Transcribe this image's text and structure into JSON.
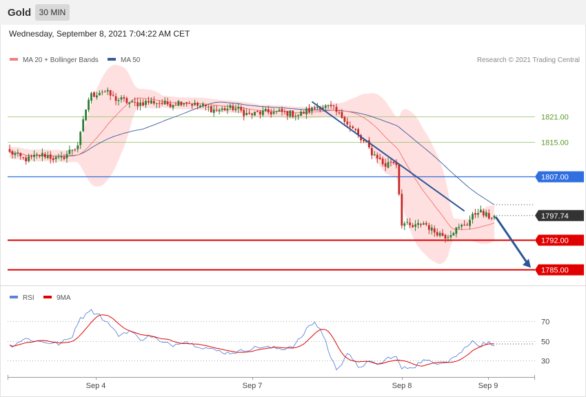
{
  "header": {
    "symbol": "Gold",
    "timeframe": "30 MIN",
    "datetime": "Wednesday, September 8, 2021 7:04:22 AM CET"
  },
  "legend": {
    "ma20": "MA 20 + Bollinger Bands",
    "ma50": "MA 50",
    "copyright": "Research © 2021 Trading Central"
  },
  "rsi_legend": {
    "rsi": "RSI",
    "ma9": "9MA"
  },
  "colors": {
    "bullish": "#2e7d32",
    "bearish": "#c62828",
    "bands": "#ffd6d6",
    "ma20": "#f07070",
    "ma50": "#3a5a9a",
    "rsi": "#5b84d6",
    "rsi_ma": "#e00000",
    "support": "#e00000",
    "pivot": "#2f6fe0",
    "resistance": "#8cc063",
    "trend_arrow": "#2c5694"
  },
  "chart_data": [
    {
      "type": "candlestick",
      "title": "Gold",
      "x_ticks": [
        "Sep 4",
        "Sep 7",
        "Sep 8",
        "Sep 9"
      ],
      "ylim": [
        1782,
        1833
      ],
      "levels": [
        {
          "value": 1821.0,
          "label": "1821.00",
          "kind": "resistance"
        },
        {
          "value": 1815.0,
          "label": "1815.00",
          "kind": "resistance"
        },
        {
          "value": 1807.0,
          "label": "1807.00",
          "kind": "pivot"
        },
        {
          "value": 1792.0,
          "label": "1792.00",
          "kind": "support"
        },
        {
          "value": 1785.0,
          "label": "1785.00",
          "kind": "support"
        }
      ],
      "last_price": {
        "value": 1797.74,
        "label": "1797.74"
      },
      "close_anchors": [
        [
          0,
          1812.5
        ],
        [
          6,
          1811.0
        ],
        [
          12,
          1812.0
        ],
        [
          18,
          1811.0
        ],
        [
          24,
          1813.5
        ],
        [
          30,
          1826.0
        ],
        [
          34,
          1827.0
        ],
        [
          40,
          1825.0
        ],
        [
          46,
          1824.0
        ],
        [
          52,
          1824.5
        ],
        [
          58,
          1824.0
        ],
        [
          64,
          1824.5
        ],
        [
          70,
          1823.5
        ],
        [
          76,
          1822.5
        ],
        [
          82,
          1823.0
        ],
        [
          88,
          1821.5
        ],
        [
          94,
          1822.0
        ],
        [
          100,
          1822.0
        ],
        [
          106,
          1821.5
        ],
        [
          110,
          1822.5
        ],
        [
          114,
          1823.5
        ],
        [
          118,
          1823.0
        ],
        [
          122,
          1821.0
        ],
        [
          126,
          1818.0
        ],
        [
          130,
          1815.0
        ],
        [
          134,
          1812.0
        ],
        [
          138,
          1809.5
        ],
        [
          140,
          1810.5
        ],
        [
          142,
          1810.0
        ],
        [
          144,
          1796.0
        ],
        [
          148,
          1795.0
        ],
        [
          152,
          1796.0
        ],
        [
          156,
          1794.0
        ],
        [
          160,
          1793.0
        ],
        [
          164,
          1794.5
        ],
        [
          168,
          1796.0
        ],
        [
          170,
          1797.5
        ],
        [
          172,
          1799.0
        ],
        [
          174,
          1798.0
        ],
        [
          176,
          1797.5
        ],
        [
          178,
          1797.74
        ]
      ]
    },
    {
      "type": "line",
      "title": "RSI",
      "series": [
        {
          "name": "RSI"
        },
        {
          "name": "9MA"
        }
      ],
      "y_ticks": [
        70,
        50,
        30
      ],
      "ylim": [
        17,
        88
      ],
      "rsi_anchors": [
        [
          0,
          45
        ],
        [
          6,
          52
        ],
        [
          12,
          49
        ],
        [
          18,
          47
        ],
        [
          22,
          52
        ],
        [
          26,
          72
        ],
        [
          29,
          81
        ],
        [
          32,
          78
        ],
        [
          36,
          68
        ],
        [
          40,
          56
        ],
        [
          44,
          60
        ],
        [
          48,
          52
        ],
        [
          52,
          55
        ],
        [
          56,
          48
        ],
        [
          60,
          46
        ],
        [
          64,
          50
        ],
        [
          68,
          46
        ],
        [
          72,
          43
        ],
        [
          76,
          40
        ],
        [
          80,
          38
        ],
        [
          84,
          39
        ],
        [
          88,
          42
        ],
        [
          92,
          44
        ],
        [
          96,
          43
        ],
        [
          100,
          42
        ],
        [
          104,
          45
        ],
        [
          108,
          56
        ],
        [
          110,
          66
        ],
        [
          112,
          68
        ],
        [
          114,
          62
        ],
        [
          116,
          50
        ],
        [
          118,
          32
        ],
        [
          120,
          22
        ],
        [
          122,
          28
        ],
        [
          124,
          38
        ],
        [
          126,
          30
        ],
        [
          128,
          24
        ],
        [
          132,
          28
        ],
        [
          136,
          27
        ],
        [
          140,
          34
        ],
        [
          142,
          33
        ],
        [
          144,
          22
        ],
        [
          148,
          24
        ],
        [
          152,
          30
        ],
        [
          156,
          28
        ],
        [
          160,
          29
        ],
        [
          164,
          35
        ],
        [
          168,
          44
        ],
        [
          170,
          52
        ],
        [
          172,
          45
        ],
        [
          174,
          47
        ],
        [
          176,
          48
        ],
        [
          178,
          47
        ]
      ]
    }
  ]
}
